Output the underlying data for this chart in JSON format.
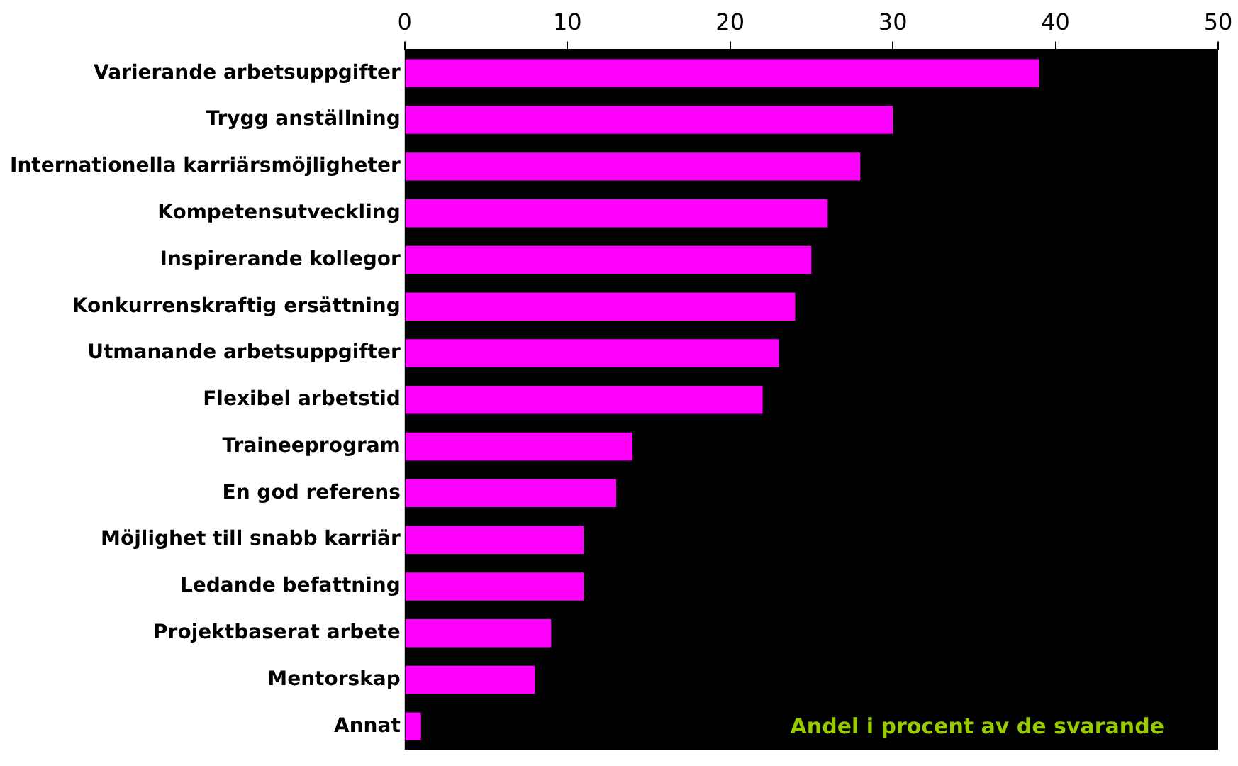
{
  "chart_data": {
    "type": "bar",
    "orientation": "horizontal",
    "categories": [
      "Varierande arbetsuppgifter",
      "Trygg anställning",
      "Internationella karriärsmöjligheter",
      "Kompetensutveckling",
      "Inspirerande kollegor",
      "Konkurrenskraftig ersättning",
      "Utmanande arbetsuppgifter",
      "Flexibel arbetstid",
      "Traineeprogram",
      "En god referens",
      "Möjlighet till snabb karriär",
      "Ledande befattning",
      "Projektbaserat arbete",
      "Mentorskap",
      "Annat"
    ],
    "values": [
      39,
      30,
      28,
      26,
      25,
      24,
      23,
      22,
      14,
      13,
      11,
      11,
      9,
      8,
      1
    ],
    "color": "#ff00ff",
    "xlim": [
      0,
      50
    ],
    "xticks": [
      0,
      10,
      20,
      30,
      40,
      50
    ],
    "grid": false,
    "legend": false,
    "annotations": [
      "Andel i procent av de svarande"
    ]
  }
}
